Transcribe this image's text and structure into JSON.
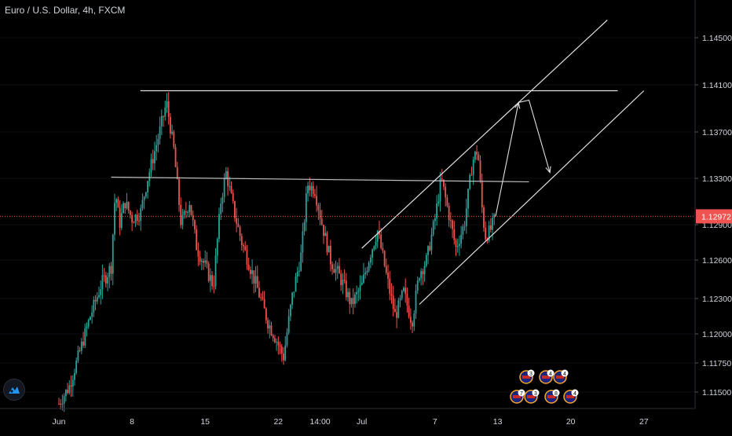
{
  "header": {
    "title": "Euro / U.S. Dollar, 4h, FXCM"
  },
  "icons": {
    "logo": "tradingview-logo-icon",
    "events": "economic-event-flag-icon"
  },
  "colors": {
    "bull": "#26a69a",
    "bear": "#ef5350",
    "background": "#000000",
    "price_line": "#ef5350"
  },
  "chart_data": {
    "type": "candlestick",
    "symbol": "Euro / U.S. Dollar",
    "timeframe": "4h",
    "source": "FXCM",
    "y_ticks": [
      "1.14500",
      "1.14100",
      "1.13700",
      "1.13300",
      "1.12900",
      "1.12600",
      "1.12300",
      "1.12000",
      "1.11750",
      "1.11500"
    ],
    "ylim": [
      1.1135,
      1.1475
    ],
    "x_ticks": [
      {
        "label": "Jun",
        "day": 1
      },
      {
        "label": "8",
        "day": 8
      },
      {
        "label": "15",
        "day": 15
      },
      {
        "label": "22",
        "day": 22
      },
      {
        "label": "14:00",
        "day": 26
      },
      {
        "label": "Jul",
        "day": 30
      },
      {
        "label": "7",
        "day": 37
      },
      {
        "label": "13",
        "day": 43
      },
      {
        "label": "20",
        "day": 50
      },
      {
        "label": "27",
        "day": 57
      }
    ],
    "current_price": {
      "label": "1.12972",
      "value": 1.12972
    },
    "price_path": [
      [
        1.0,
        1.114
      ],
      [
        2.0,
        1.1155
      ],
      [
        3.0,
        1.1185
      ],
      [
        4.0,
        1.1215
      ],
      [
        5.0,
        1.124
      ],
      [
        6.0,
        1.1255
      ],
      [
        6.4,
        1.132
      ],
      [
        6.8,
        1.129
      ],
      [
        7.3,
        1.131
      ],
      [
        8.0,
        1.1295
      ],
      [
        8.8,
        1.13
      ],
      [
        9.5,
        1.133
      ],
      [
        10.5,
        1.1365
      ],
      [
        11.3,
        1.1395
      ],
      [
        12.0,
        1.1355
      ],
      [
        12.7,
        1.129
      ],
      [
        13.5,
        1.131
      ],
      [
        14.2,
        1.127
      ],
      [
        15.0,
        1.1255
      ],
      [
        15.8,
        1.124
      ],
      [
        16.5,
        1.131
      ],
      [
        17.0,
        1.1335
      ],
      [
        17.8,
        1.13
      ],
      [
        18.5,
        1.1275
      ],
      [
        19.5,
        1.125
      ],
      [
        20.3,
        1.123
      ],
      [
        21.0,
        1.121
      ],
      [
        21.8,
        1.1195
      ],
      [
        22.5,
        1.118
      ],
      [
        23.3,
        1.123
      ],
      [
        24.2,
        1.1265
      ],
      [
        24.8,
        1.1325
      ],
      [
        25.5,
        1.132
      ],
      [
        26.2,
        1.129
      ],
      [
        27.0,
        1.126
      ],
      [
        28.0,
        1.1245
      ],
      [
        29.0,
        1.1225
      ],
      [
        30.0,
        1.124
      ],
      [
        30.8,
        1.1265
      ],
      [
        31.5,
        1.1285
      ],
      [
        32.3,
        1.125
      ],
      [
        33.2,
        1.1215
      ],
      [
        34.0,
        1.1235
      ],
      [
        34.8,
        1.121
      ],
      [
        35.5,
        1.125
      ],
      [
        36.2,
        1.126
      ],
      [
        37.0,
        1.1295
      ],
      [
        37.6,
        1.133
      ],
      [
        38.3,
        1.13
      ],
      [
        39.0,
        1.127
      ],
      [
        39.8,
        1.129
      ],
      [
        40.6,
        1.1345
      ],
      [
        41.1,
        1.1355
      ],
      [
        41.5,
        1.1305
      ],
      [
        41.8,
        1.128
      ],
      [
        42.3,
        1.1285
      ],
      [
        42.8,
        1.1297
      ]
    ],
    "annotations": {
      "resistance_line": {
        "x": [
          8.8,
          54.5
        ],
        "y": [
          1.1405,
          1.1405
        ]
      },
      "mid_line": {
        "x": [
          6.0,
          46.0
        ],
        "y": [
          1.1331,
          1.1327
        ]
      },
      "channel_upper": {
        "x": [
          30.0,
          53.5
        ],
        "y": [
          1.127,
          1.1465
        ]
      },
      "channel_lower": {
        "x": [
          35.5,
          57.0
        ],
        "y": [
          1.1225,
          1.1405
        ]
      },
      "projection_path": {
        "x": [
          42.8,
          45.0,
          46.0,
          48.0
        ],
        "y": [
          1.1297,
          1.1395,
          1.1397,
          1.1335
        ]
      }
    },
    "events": {
      "row1": [
        "3",
        "4",
        "4"
      ],
      "row2": [
        "7",
        "3",
        "8",
        "4"
      ]
    }
  }
}
